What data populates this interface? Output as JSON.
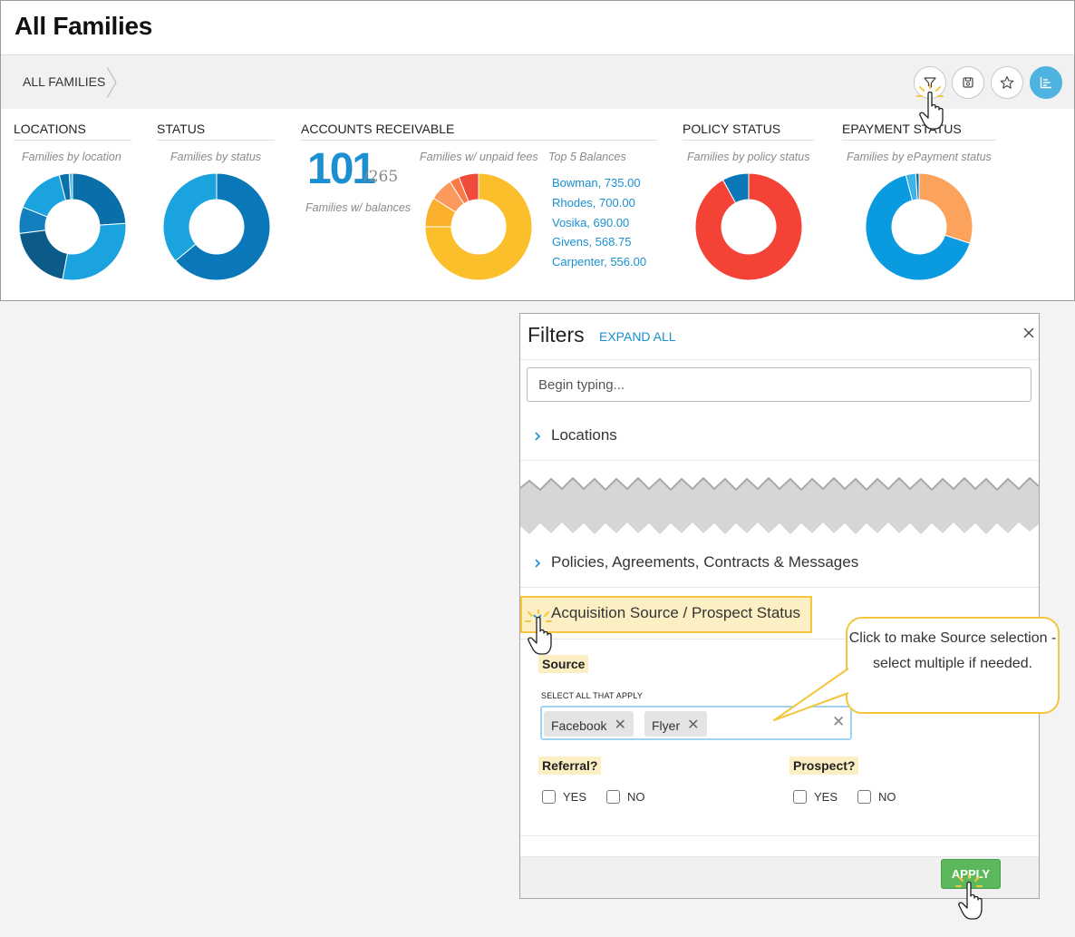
{
  "page": {
    "title": "All Families"
  },
  "breadcrumb": {
    "label": "ALL FAMILIES"
  },
  "toolbar": {
    "buttons": [
      {
        "name": "filter",
        "icon": "filter-icon"
      },
      {
        "name": "save",
        "icon": "save-search-icon"
      },
      {
        "name": "favorite",
        "icon": "star-icon"
      },
      {
        "name": "charts",
        "icon": "chart-icon"
      }
    ]
  },
  "dashboard": {
    "locations": {
      "title": "LOCATIONS",
      "subtitle": "Families by location"
    },
    "status": {
      "title": "STATUS",
      "subtitle": "Families by status"
    },
    "accounts_receivable": {
      "title": "ACCOUNTS RECEIVABLE",
      "count": "101",
      "total": "/265",
      "count_label": "Families w/ balances",
      "unpaid_label": "Families w/ unpaid fees",
      "top5_label": "Top 5 Balances",
      "top5": [
        "Bowman, 735.00",
        "Rhodes, 700.00",
        "Vosika, 690.00",
        "Givens, 568.75",
        "Carpenter, 556.00"
      ]
    },
    "policy_status": {
      "title": "POLICY STATUS",
      "subtitle": "Families by policy status"
    },
    "epayment_status": {
      "title": "EPAYMENT STATUS",
      "subtitle": "Families by ePayment status"
    }
  },
  "filters": {
    "title": "Filters",
    "expand_all": "EXPAND ALL",
    "search_placeholder": "Begin typing...",
    "sections": [
      {
        "label": "Locations"
      },
      {
        "label": "Policies, Agreements, Contracts & Messages"
      }
    ],
    "active_section": {
      "label": "Acquisition Source / Prospect Status",
      "source": {
        "label": "Source",
        "hint": "SELECT ALL THAT APPLY",
        "selected": [
          "Facebook",
          "Flyer"
        ],
        "remove_glyph": "✕",
        "clear_glyph": "✕"
      },
      "referral": {
        "label": "Referral?",
        "yes": "YES",
        "no": "NO"
      },
      "prospect": {
        "label": "Prospect?",
        "yes": "YES",
        "no": "NO"
      }
    },
    "apply_label": "APPLY"
  },
  "callout": {
    "text": "Click to make Source selection - select multiple if needed."
  },
  "colors": {
    "accent": "#1b8fd0",
    "highlight": "#f3c63d",
    "highlight_fill": "#fcefc4",
    "apply_green": "#5cb85c"
  },
  "chart_data": [
    {
      "type": "pie",
      "title": "LOCATIONS",
      "subtitle": "Families by location",
      "values": [
        24,
        29,
        20,
        8,
        15,
        3,
        1
      ],
      "colors": [
        "#0a6ea8",
        "#1ba3e0",
        "#0b5a87",
        "#1280bf",
        "#1ba3e0",
        "#0a6ea8",
        "#3fb2e8"
      ]
    },
    {
      "type": "pie",
      "title": "STATUS",
      "subtitle": "Families by status",
      "values": [
        64,
        36
      ],
      "colors": [
        "#0a78b8",
        "#1ba3e0"
      ]
    },
    {
      "type": "pie",
      "title": "ACCOUNTS RECEIVABLE",
      "subtitle": "Families w/ unpaid fees",
      "values": [
        75,
        9,
        7,
        3,
        6
      ],
      "colors": [
        "#fbbf2c",
        "#fbb02c",
        "#fb9a5c",
        "#fb7a45",
        "#f04a3a"
      ]
    },
    {
      "type": "pie",
      "title": "POLICY STATUS",
      "subtitle": "Families by policy status",
      "values": [
        92,
        8
      ],
      "colors": [
        "#f44336",
        "#0a78b8"
      ]
    },
    {
      "type": "pie",
      "title": "EPAYMENT STATUS",
      "subtitle": "Families by ePayment status",
      "values": [
        30,
        66,
        3,
        1
      ],
      "colors": [
        "#fba35c",
        "#0a9ae0",
        "#3fb2e8",
        "#0a6ea8"
      ]
    }
  ]
}
